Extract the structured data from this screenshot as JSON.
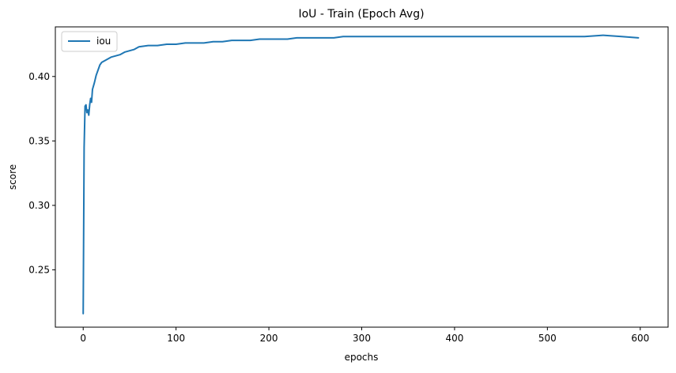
{
  "chart_data": {
    "type": "line",
    "title": "IoU - Train (Epoch Avg)",
    "xlabel": "epochs",
    "ylabel": "score",
    "xlim": [
      -30,
      630
    ],
    "ylim": [
      0.2055,
      0.4385
    ],
    "xticks": [
      0,
      100,
      200,
      300,
      400,
      500,
      600
    ],
    "yticks": [
      0.25,
      0.3,
      0.35,
      0.4
    ],
    "xtick_labels": [
      "0",
      "100",
      "200",
      "300",
      "400",
      "500",
      "600"
    ],
    "ytick_labels": [
      "0.25",
      "0.30",
      "0.35",
      "0.40"
    ],
    "grid": false,
    "legend": {
      "position": "top-left",
      "entries": [
        "iou"
      ]
    },
    "colors": {
      "iou": "#1f77b4"
    },
    "series": [
      {
        "name": "iou",
        "x": [
          0,
          1,
          2,
          3,
          4,
          5,
          6,
          7,
          8,
          9,
          10,
          12,
          14,
          16,
          18,
          20,
          25,
          30,
          35,
          40,
          45,
          50,
          55,
          60,
          70,
          80,
          90,
          100,
          110,
          120,
          130,
          140,
          150,
          160,
          170,
          180,
          190,
          200,
          210,
          220,
          230,
          240,
          250,
          260,
          270,
          280,
          290,
          300,
          320,
          340,
          360,
          380,
          400,
          420,
          440,
          460,
          480,
          500,
          520,
          540,
          560,
          580,
          598
        ],
        "y": [
          0.216,
          0.345,
          0.377,
          0.378,
          0.372,
          0.374,
          0.37,
          0.378,
          0.383,
          0.38,
          0.39,
          0.395,
          0.401,
          0.405,
          0.409,
          0.411,
          0.413,
          0.415,
          0.416,
          0.417,
          0.419,
          0.42,
          0.421,
          0.423,
          0.424,
          0.424,
          0.425,
          0.425,
          0.426,
          0.426,
          0.426,
          0.427,
          0.427,
          0.428,
          0.428,
          0.428,
          0.429,
          0.429,
          0.429,
          0.429,
          0.43,
          0.43,
          0.43,
          0.43,
          0.43,
          0.431,
          0.431,
          0.431,
          0.431,
          0.431,
          0.431,
          0.431,
          0.431,
          0.431,
          0.431,
          0.431,
          0.431,
          0.431,
          0.431,
          0.431,
          0.432,
          0.431,
          0.43
        ]
      }
    ]
  }
}
